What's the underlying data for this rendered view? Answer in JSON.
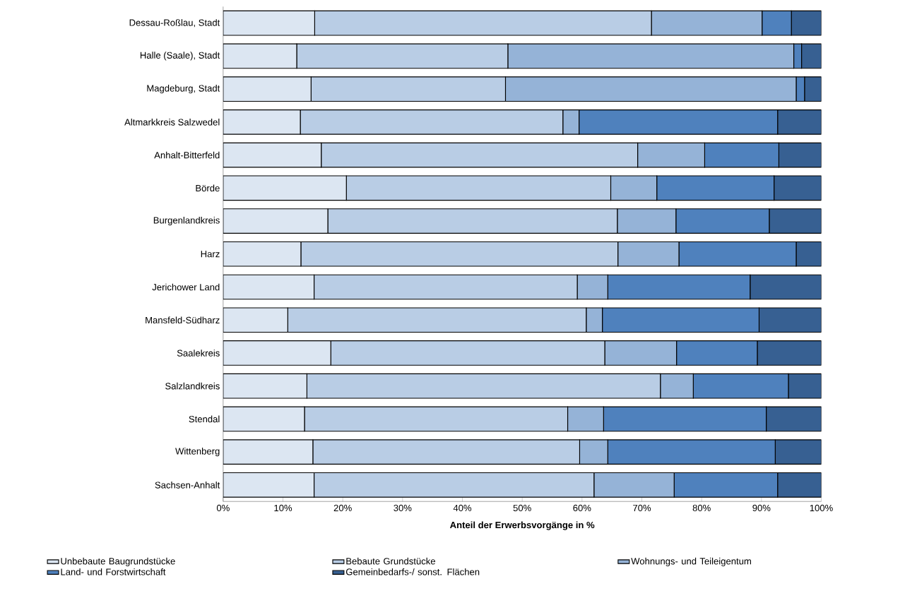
{
  "chart_data": {
    "type": "bar",
    "orientation": "horizontal",
    "stacked": true,
    "legend": "bottom",
    "xlabel": "Anteil der Erwerbsvorgänge in %",
    "categories": [
      "Dessau-Roßlau, Stadt",
      "Halle (Saale), Stadt",
      "Magdeburg, Stadt",
      "Altmarkkreis Salzwedel",
      "Anhalt-Bitterfeld",
      "Börde",
      "Burgenlandkreis",
      "Harz",
      "Jerichower Land",
      "Mansfeld-Südharz",
      "Saalekreis",
      "Salzlandkreis",
      "Stendal",
      "Wittenberg",
      "Sachsen-Anhalt"
    ],
    "xlim": [
      0,
      100
    ],
    "xticks": [
      {
        "value": 0,
        "label": "0%"
      },
      {
        "value": 10,
        "label": "10%"
      },
      {
        "value": 20,
        "label": "20%"
      },
      {
        "value": 30,
        "label": "30%"
      },
      {
        "value": 40,
        "label": "40%"
      },
      {
        "value": 50,
        "label": "50%"
      },
      {
        "value": 60,
        "label": "60%"
      },
      {
        "value": 70,
        "label": "70%"
      },
      {
        "value": 80,
        "label": "80%"
      },
      {
        "value": 90,
        "label": "90%"
      },
      {
        "value": 100,
        "label": "100%"
      }
    ],
    "series": [
      {
        "name": "Unbebaute Baugrundstücke",
        "color": "#dce6f2",
        "values": [
          15.3,
          12.3,
          14.7,
          12.9,
          16.4,
          20.6,
          17.5,
          13.0,
          15.2,
          10.8,
          18.0,
          14.0,
          13.6,
          15.0,
          15.2
        ]
      },
      {
        "name": "Bebaute Grundstücke",
        "color": "#b9cde5",
        "values": [
          56.3,
          35.3,
          32.5,
          43.9,
          52.9,
          44.2,
          48.4,
          53.0,
          44.0,
          49.9,
          45.8,
          59.1,
          44.0,
          44.6,
          46.8
        ]
      },
      {
        "name": "Wohnungs- und Teileigentum",
        "color": "#95b3d7",
        "values": [
          18.5,
          47.8,
          48.6,
          2.7,
          11.2,
          7.7,
          9.8,
          10.2,
          5.1,
          2.7,
          12.0,
          5.5,
          6.0,
          4.7,
          13.4
        ]
      },
      {
        "name": "Land- und Forstwirtschaft",
        "color": "#4f81bd",
        "values": [
          4.9,
          1.3,
          1.4,
          33.2,
          12.4,
          19.6,
          15.6,
          19.6,
          23.8,
          26.2,
          13.5,
          15.9,
          27.2,
          28.0,
          17.3
        ]
      },
      {
        "name": "Gemeinbedarfs-/ sonst. Flächen",
        "color": "#376092",
        "values": [
          5.0,
          3.3,
          2.8,
          7.3,
          7.1,
          7.9,
          8.7,
          4.2,
          11.9,
          10.4,
          10.7,
          5.5,
          9.2,
          7.7,
          7.3
        ]
      }
    ]
  }
}
